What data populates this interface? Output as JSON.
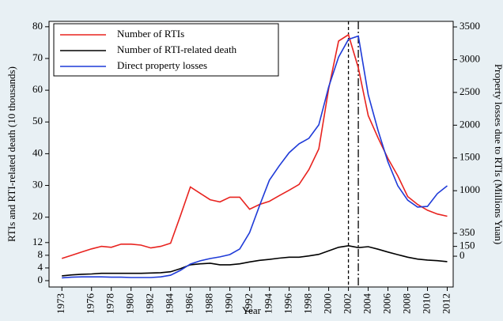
{
  "chart_data": {
    "type": "line",
    "x_label": "Year",
    "y_label": "RTIs and RTI-related death (10 thousands)",
    "y2_label": "Property losses due to RTIs (Millions Yuan)",
    "x": [
      1973,
      1974,
      1975,
      1976,
      1977,
      1978,
      1979,
      1980,
      1981,
      1982,
      1983,
      1984,
      1985,
      1986,
      1987,
      1988,
      1989,
      1990,
      1991,
      1992,
      1993,
      1994,
      1995,
      1996,
      1997,
      1998,
      1999,
      2000,
      2001,
      2002,
      2003,
      2004,
      2005,
      2006,
      2007,
      2008,
      2009,
      2010,
      2011,
      2012
    ],
    "xlim": [
      1971.7,
      2012.6
    ],
    "xticks": [
      1973,
      1976,
      1978,
      1980,
      1982,
      1984,
      1986,
      1988,
      1990,
      1992,
      1994,
      1996,
      1998,
      2000,
      2002,
      2004,
      2006,
      2008,
      2010,
      2012
    ],
    "ylim": [
      -2,
      81.7
    ],
    "yticks": [
      0,
      4,
      8,
      12,
      20,
      30,
      40,
      50,
      60,
      70,
      80
    ],
    "y2lim": [
      -470,
      3585
    ],
    "y2ticks": [
      0,
      150,
      350,
      1000,
      1500,
      2000,
      2500,
      3000,
      3500
    ],
    "legend": "top-left",
    "reference_lines": [
      {
        "x": 2002,
        "style": "dashed"
      },
      {
        "x": 2003,
        "style": "dashdot"
      }
    ],
    "series": [
      {
        "name": "Number of RTIs",
        "color": "#e8231f",
        "axis": "y",
        "values": [
          7,
          8,
          9,
          10,
          10.8,
          10.5,
          11.5,
          11.5,
          11.2,
          10.3,
          10.8,
          11.8,
          20.5,
          29.5,
          27.5,
          25.5,
          24.8,
          26.3,
          26.3,
          22.5,
          24,
          25,
          26.8,
          28.5,
          30.3,
          35,
          41.5,
          60.5,
          75.5,
          77.5,
          67,
          52,
          45,
          38.5,
          33,
          26.5,
          24,
          22.2,
          21,
          20.3
        ]
      },
      {
        "name": "Number of RTI-related death",
        "color": "#000000",
        "axis": "y",
        "values": [
          1.5,
          1.8,
          2,
          2.1,
          2.3,
          2.3,
          2.3,
          2.3,
          2.3,
          2.4,
          2.5,
          2.8,
          3.8,
          5,
          5.3,
          5.5,
          5,
          5,
          5.3,
          5.9,
          6.4,
          6.7,
          7.1,
          7.4,
          7.4,
          7.8,
          8.3,
          9.4,
          10.5,
          11,
          10.4,
          10.7,
          9.9,
          9,
          8.2,
          7.4,
          6.8,
          6.5,
          6.3,
          6
        ]
      },
      {
        "name": "Direct property losses",
        "color": "#1f3bd8",
        "axis": "y2",
        "values": [
          -330,
          -320,
          -315,
          -315,
          -315,
          -320,
          -320,
          -325,
          -325,
          -325,
          -315,
          -290,
          -215,
          -120,
          -70,
          -35,
          -10,
          25,
          110,
          360,
          770,
          1160,
          1380,
          1580,
          1715,
          1800,
          2005,
          2585,
          3040,
          3310,
          3360,
          2465,
          1920,
          1440,
          1075,
          855,
          750,
          760,
          955,
          1075
        ]
      }
    ]
  }
}
